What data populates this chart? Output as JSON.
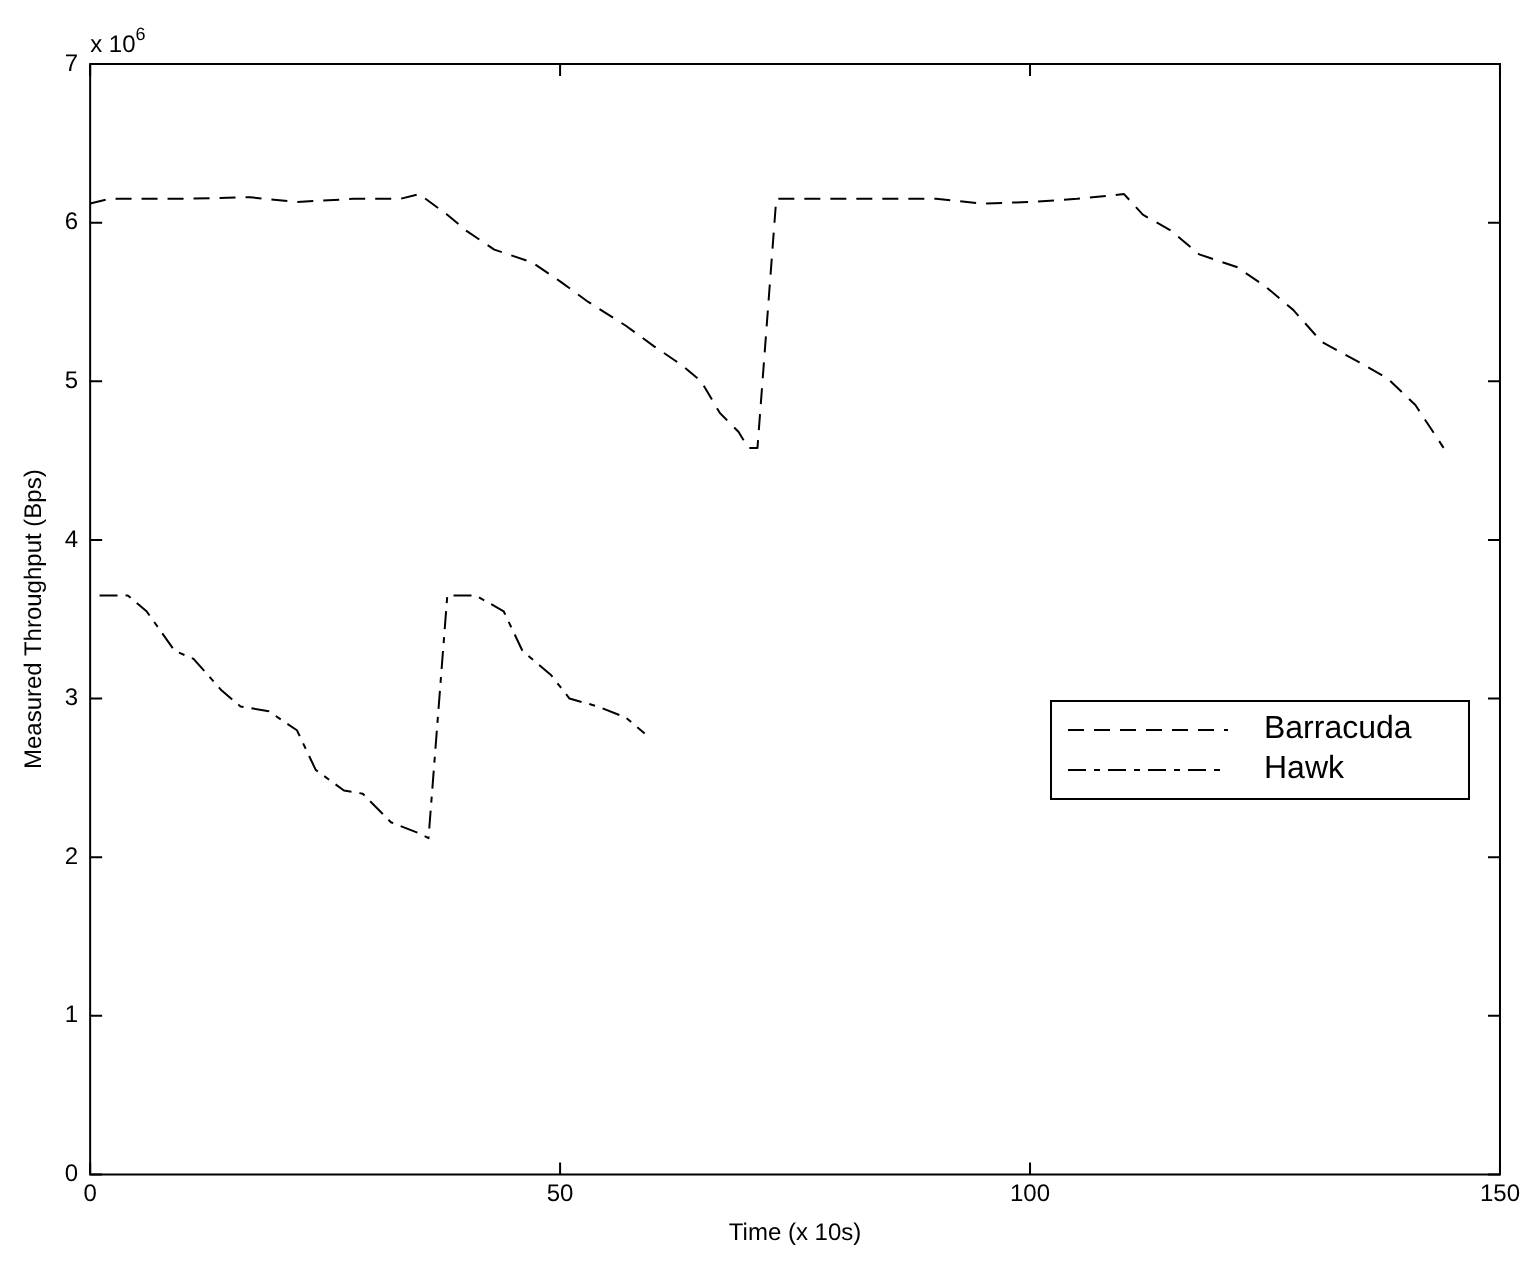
{
  "chart_data": {
    "type": "line",
    "xlabel": "Time (x 10s)",
    "ylabel": "Measured Throughput (Bps)",
    "annotations": [
      "x 10$^{6}$"
    ],
    "xlim": [
      0,
      150
    ],
    "xticks": [
      0,
      50,
      100,
      150
    ],
    "ylim": [
      0,
      7
    ],
    "yticks": [
      0,
      1,
      2,
      3,
      4,
      5,
      6,
      7
    ],
    "grid": false,
    "legend": "right",
    "marker": "none",
    "series": [
      {
        "name": "Barracuda",
        "color": "#000000",
        "line_style": "dashed",
        "x": [
          0,
          2,
          10,
          17,
          22,
          28,
          33,
          35,
          38,
          40,
          43,
          47,
          50,
          53,
          57,
          60,
          63,
          65,
          67,
          69,
          70,
          71,
          73,
          80,
          90,
          95,
          100,
          105,
          110,
          112,
          115,
          118,
          122,
          125,
          128,
          131,
          135,
          138,
          141,
          144
        ],
        "values": [
          6.12,
          6.15,
          6.15,
          6.16,
          6.13,
          6.15,
          6.15,
          6.18,
          6.05,
          5.95,
          5.83,
          5.75,
          5.63,
          5.5,
          5.35,
          5.22,
          5.1,
          5.0,
          4.8,
          4.68,
          4.58,
          4.58,
          6.15,
          6.15,
          6.15,
          6.12,
          6.13,
          6.15,
          6.18,
          6.05,
          5.95,
          5.8,
          5.72,
          5.6,
          5.45,
          5.25,
          5.12,
          5.02,
          4.85,
          4.58
        ]
      },
      {
        "name": "Hawk",
        "color": "#000000",
        "line_style": "dashdot",
        "x": [
          1,
          4,
          6,
          9,
          11,
          14,
          16,
          19,
          22,
          24,
          27,
          29,
          32,
          35,
          36,
          38,
          41,
          44,
          46,
          49,
          51,
          54,
          57,
          59
        ],
        "values": [
          3.65,
          3.65,
          3.55,
          3.3,
          3.25,
          3.05,
          2.95,
          2.92,
          2.8,
          2.55,
          2.42,
          2.4,
          2.22,
          2.15,
          2.12,
          3.65,
          3.65,
          3.55,
          3.3,
          3.15,
          3.0,
          2.95,
          2.88,
          2.78
        ]
      }
    ]
  }
}
